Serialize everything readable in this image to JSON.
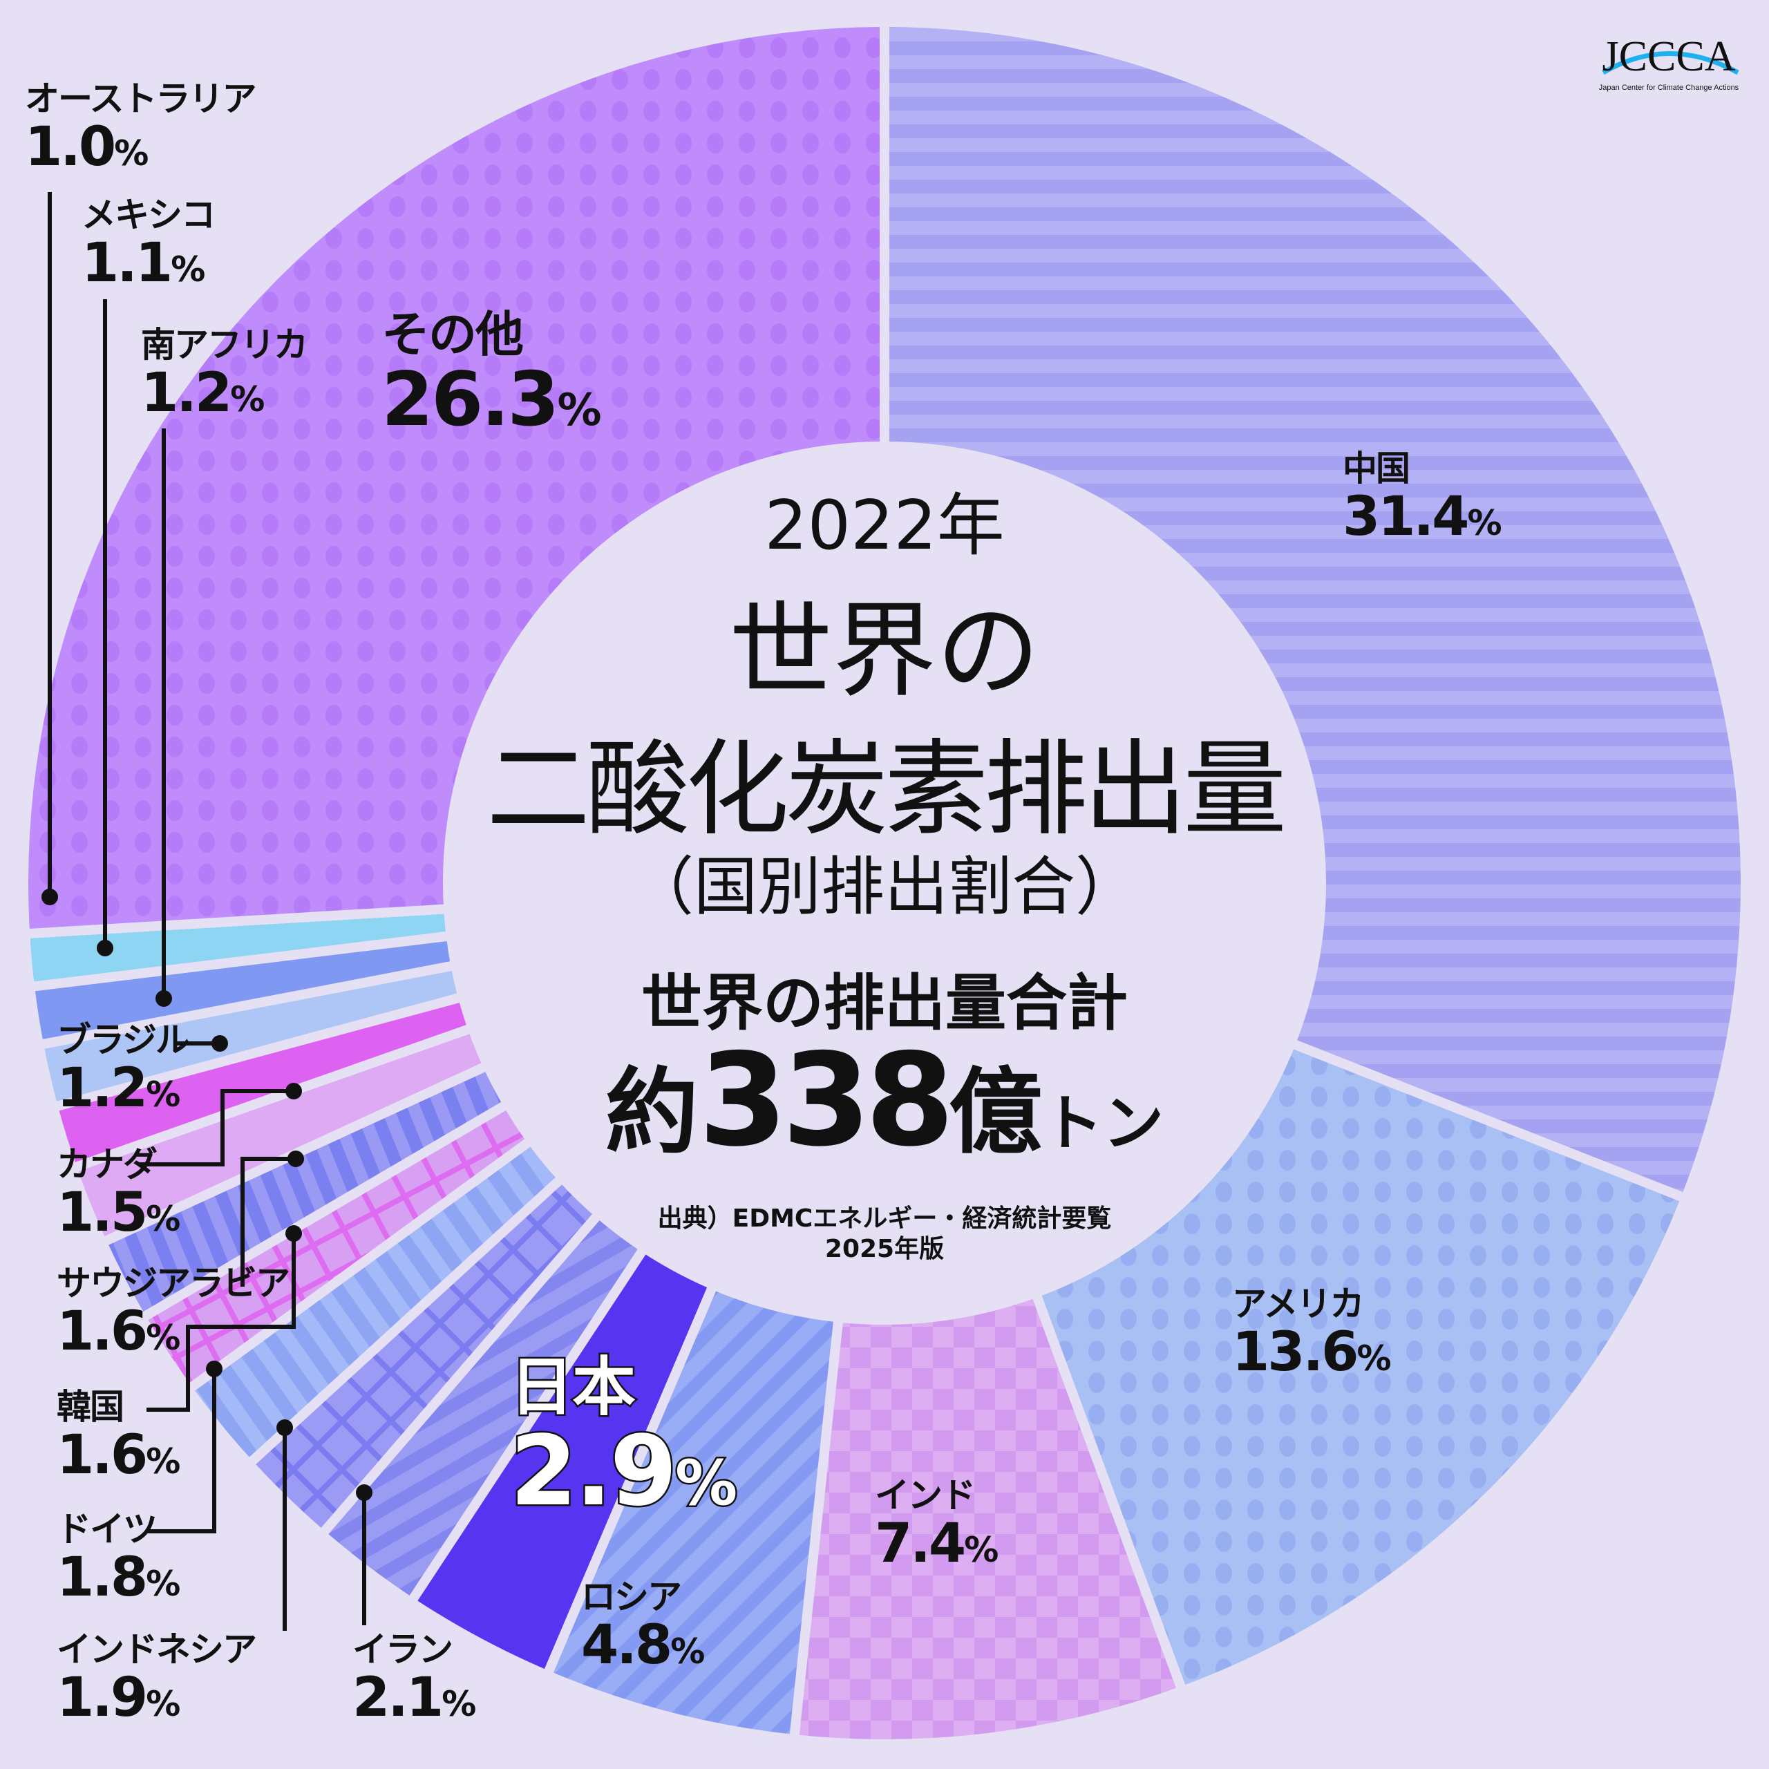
{
  "title": {
    "year": "2022年",
    "line1": "世界の",
    "line2": "二酸化炭素排出量",
    "line3": "（国別排出割合）"
  },
  "total": {
    "label": "世界の排出量合計",
    "prefix": "約",
    "number": "338",
    "unit_kanji": "億",
    "unit_kana": "トン"
  },
  "source": {
    "line1": "出典）EDMCエネルギー・経済統計要覧",
    "line2": "2025年版"
  },
  "logo": {
    "text": "JCCCA",
    "subtitle": "Japan Center for Climate Change Actions"
  },
  "chart_data": {
    "type": "pie",
    "donut": true,
    "start": "top, clockwise",
    "unit": "%",
    "slices": [
      {
        "name": "中国",
        "value": 31.4,
        "color": "#b1aef4",
        "pattern": "horizontal-stripes"
      },
      {
        "name": "アメリカ",
        "value": 13.6,
        "color": "#a8bff5",
        "pattern": "dots"
      },
      {
        "name": "インド",
        "value": 7.4,
        "color": "#dba9f1",
        "pattern": "checker"
      },
      {
        "name": "ロシア",
        "value": 4.8,
        "color": "#93a9f4",
        "pattern": "diagonal-stripes"
      },
      {
        "name": "日本",
        "value": 2.9,
        "color": "#5634f0",
        "pattern": "solid"
      },
      {
        "name": "イラン",
        "value": 2.1,
        "color": "#8f90f2",
        "pattern": "diagonal-stripes"
      },
      {
        "name": "インドネシア",
        "value": 1.9,
        "color": "#9796f3",
        "pattern": "crosshatch"
      },
      {
        "name": "ドイツ",
        "value": 1.8,
        "color": "#97aef6",
        "pattern": "vertical-stripes"
      },
      {
        "name": "韓国",
        "value": 1.6,
        "color": "#d79df2",
        "pattern": "grid"
      },
      {
        "name": "サウジアラビア",
        "value": 1.6,
        "color": "#9394f4",
        "pattern": "vertical-stripes"
      },
      {
        "name": "カナダ",
        "value": 1.5,
        "color": "#ddaaf3",
        "pattern": "solid"
      },
      {
        "name": "ブラジル",
        "value": 1.2,
        "color": "#dd62f2",
        "pattern": "solid"
      },
      {
        "name": "南アフリカ",
        "value": 1.2,
        "color": "#aec6f5",
        "pattern": "solid"
      },
      {
        "name": "メキシコ",
        "value": 1.1,
        "color": "#7f98f1",
        "pattern": "solid"
      },
      {
        "name": "オーストラリア",
        "value": 1.0,
        "color": "#8ed4f3",
        "pattern": "solid"
      },
      {
        "name": "その他",
        "value": 26.3,
        "color": "#c08cfb",
        "pattern": "dots"
      }
    ],
    "labels": [
      "31.4",
      "13.6",
      "7.4",
      "4.8",
      "2.9",
      "2.1",
      "1.9",
      "1.8",
      "1.6",
      "1.6",
      "1.5",
      "1.2",
      "1.2",
      "1.1",
      "1.0",
      "26.3"
    ],
    "percent_sign": "%"
  }
}
